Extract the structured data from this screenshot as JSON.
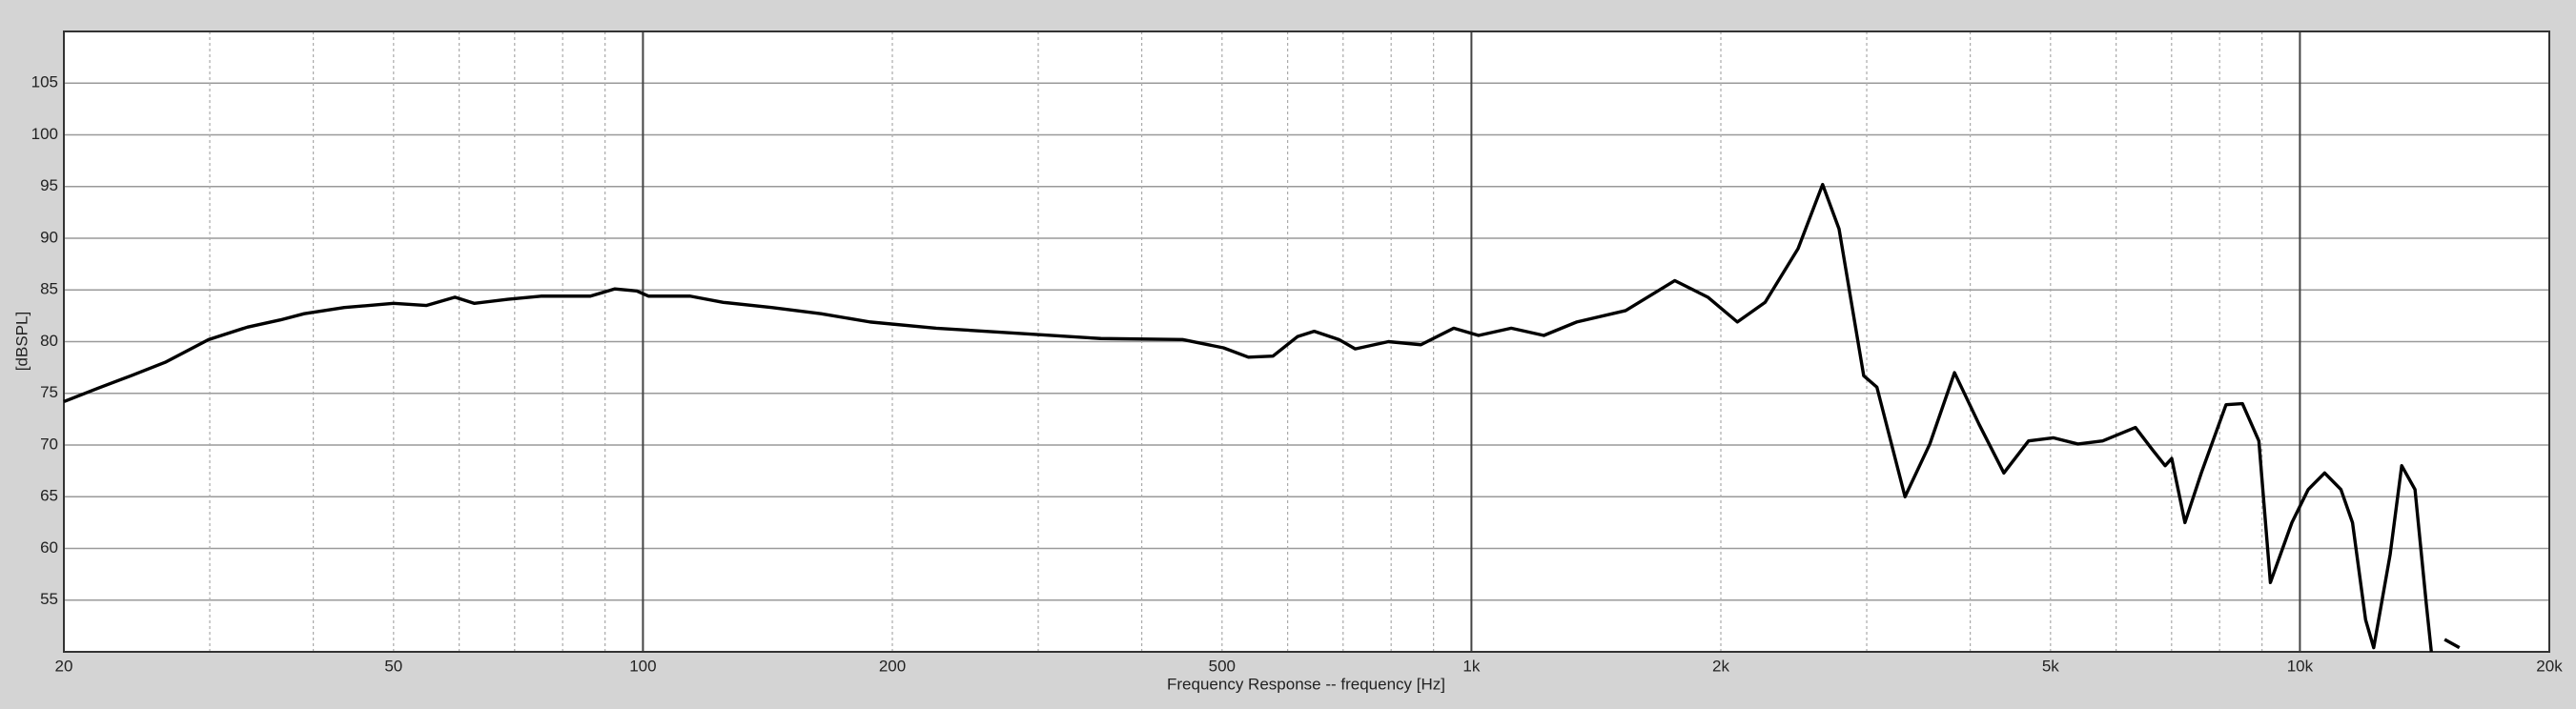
{
  "chart_data": {
    "type": "line",
    "xlabel": "Frequency Response -- frequency [Hz]",
    "ylabel": "[dBSPL]",
    "xscale": "log",
    "grid": true,
    "color": "#000000",
    "xlim": [
      20,
      20000
    ],
    "ylim": [
      50,
      110
    ],
    "xticks": [
      20,
      50,
      100,
      200,
      500,
      {
        "value": 1000,
        "label": "1k"
      },
      {
        "value": 2000,
        "label": "2k"
      },
      {
        "value": 5000,
        "label": "5k"
      },
      {
        "value": 10000,
        "label": "10k"
      },
      {
        "value": 20000,
        "label": "20k"
      }
    ],
    "xminor": [
      30,
      40,
      60,
      70,
      80,
      90,
      300,
      400,
      600,
      700,
      800,
      900,
      3000,
      4000,
      6000,
      7000,
      8000,
      9000
    ],
    "yticks": [
      55,
      60,
      65,
      70,
      75,
      80,
      85,
      90,
      95,
      100,
      105
    ],
    "x": [
      20,
      22,
      24.1,
      26.5,
      29.9,
      33.3,
      36.5,
      39,
      43.6,
      50,
      54.8,
      59.3,
      62.6,
      68.7,
      75.3,
      86.4,
      92.5,
      98.3,
      101.6,
      114,
      125,
      143,
      164,
      188,
      226,
      284,
      357,
      448,
      502,
      538,
      576,
      617,
      646,
      692,
      724,
      794,
      869,
      952,
      1020,
      1117,
      1223,
      1340,
      1535,
      1760,
      1929,
      2094,
      2262,
      2479,
      2654,
      2778,
      2975,
      3086,
      3337,
      3575,
      3829,
      4100,
      4392,
      4704,
      5038,
      5396,
      5780,
      6331,
      6629,
      6876,
      7003,
      7265,
      7603,
      8144,
      8524,
      8922,
      9212,
      9780,
      10234,
      10711,
      11208,
      11574,
      12003,
      12276,
      12850,
      13270,
      13770,
      14210,
      14410,
      14700,
      14950,
      15580
    ],
    "values": [
      74.2,
      75.5,
      76.7,
      78.0,
      80.2,
      81.4,
      82.1,
      82.7,
      83.3,
      83.7,
      83.5,
      84.3,
      83.7,
      84.1,
      84.4,
      84.4,
      85.1,
      84.9,
      84.4,
      84.4,
      83.8,
      83.3,
      82.7,
      81.9,
      81.3,
      80.8,
      80.3,
      80.2,
      79.4,
      78.5,
      78.6,
      80.5,
      81.0,
      80.2,
      79.3,
      80.0,
      79.7,
      81.3,
      80.6,
      81.3,
      80.6,
      81.9,
      83.0,
      85.9,
      84.3,
      81.9,
      83.8,
      89.0,
      95.2,
      90.9,
      76.7,
      75.6,
      65.0,
      70.1,
      77.0,
      72.0,
      67.3,
      70.4,
      70.7,
      70.1,
      70.4,
      71.7,
      69.6,
      68.0,
      68.7,
      62.5,
      67.3,
      73.9,
      74.0,
      70.4,
      56.7,
      62.5,
      65.7,
      67.3,
      65.7,
      62.5,
      53.1,
      50.4,
      59.4,
      68.0,
      65.7,
      54.6,
      50,
      null,
      51.2,
      50.4
    ]
  }
}
